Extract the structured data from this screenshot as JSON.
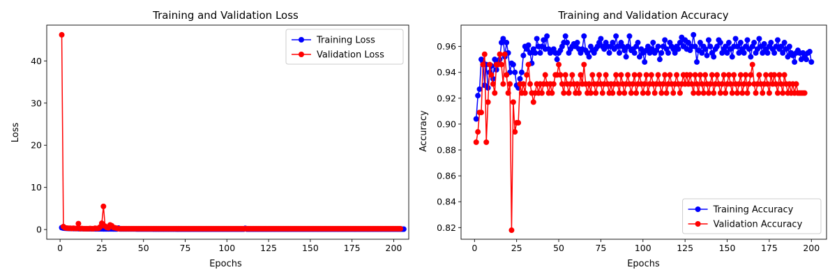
{
  "chart_data": [
    {
      "type": "line",
      "title": "Training and Validation Loss",
      "xlabel": "Epochs",
      "ylabel": "Loss",
      "xlim": [
        -8,
        209
      ],
      "ylim": [
        -2.3,
        48.5
      ],
      "xticks": [
        0,
        25,
        50,
        75,
        100,
        125,
        150,
        175,
        200
      ],
      "yticks": [
        0,
        10,
        20,
        30,
        40
      ],
      "grid": false,
      "legend_position": "top-right",
      "x": {
        "start": 1,
        "end": 200
      },
      "series": [
        {
          "name": "Training Loss",
          "color": "#0000ff",
          "values": [
            0.45,
            0.35,
            0.3,
            0.28,
            0.26,
            0.25,
            0.24,
            0.23,
            0.22,
            0.22,
            0.21,
            0.2,
            0.2,
            0.19,
            0.19,
            0.18,
            0.18,
            0.18,
            0.17,
            0.17,
            0.17,
            0.16,
            0.16,
            0.16,
            0.16,
            0.15,
            0.15,
            0.15,
            0.15,
            0.15,
            0.15,
            0.14,
            0.14,
            0.14,
            0.35,
            0.14,
            0.14,
            0.13,
            0.13,
            0.13,
            0.13,
            0.13,
            0.13,
            0.13,
            0.13,
            0.12,
            0.12,
            0.12,
            0.12,
            0.12,
            0.12,
            0.12,
            0.12,
            0.12,
            0.12,
            0.11,
            0.11,
            0.11,
            0.11,
            0.11,
            0.11,
            0.11,
            0.11,
            0.11,
            0.11,
            0.11,
            0.11,
            0.11,
            0.11,
            0.1,
            0.1,
            0.1,
            0.1,
            0.1,
            0.1,
            0.1,
            0.1,
            0.1,
            0.1,
            0.1,
            0.1,
            0.1,
            0.1,
            0.1,
            0.1,
            0.1,
            0.1,
            0.1,
            0.1,
            0.1,
            0.1,
            0.1,
            0.1,
            0.1,
            0.1,
            0.1,
            0.1,
            0.1,
            0.1,
            0.1,
            0.1,
            0.1,
            0.1,
            0.1,
            0.1,
            0.1,
            0.1,
            0.1,
            0.1,
            0.1,
            0.28,
            0.1,
            0.1,
            0.1,
            0.1,
            0.1,
            0.1,
            0.1,
            0.1,
            0.1,
            0.1,
            0.1,
            0.1,
            0.1,
            0.1,
            0.1,
            0.1,
            0.1,
            0.1,
            0.1,
            0.1,
            0.1,
            0.1,
            0.1,
            0.1,
            0.1,
            0.1,
            0.1,
            0.1,
            0.1,
            0.1,
            0.1,
            0.1,
            0.1,
            0.1,
            0.1,
            0.1,
            0.1,
            0.1,
            0.1,
            0.1,
            0.1,
            0.1,
            0.1,
            0.1,
            0.1,
            0.1,
            0.1,
            0.1,
            0.1,
            0.1,
            0.1,
            0.1,
            0.1,
            0.1,
            0.1,
            0.1,
            0.1,
            0.1,
            0.1,
            0.1,
            0.1,
            0.1,
            0.1,
            0.1,
            0.1,
            0.1,
            0.1,
            0.1,
            0.1,
            0.1,
            0.1,
            0.1,
            0.1,
            0.1,
            0.1,
            0.1,
            0.1,
            0.1,
            0.1,
            0.1,
            0.1,
            0.1,
            0.1,
            0.1,
            0.1,
            0.1,
            0.1,
            0.1,
            0.1,
            0.1,
            0.1,
            0.1,
            0.1,
            0.1,
            0.1
          ]
        },
        {
          "name": "Validation Loss",
          "color": "#ff0000",
          "values": [
            46.2,
            0.7,
            0.4,
            0.35,
            0.3,
            0.3,
            0.25,
            0.3,
            0.25,
            0.25,
            1.4,
            0.2,
            0.25,
            0.2,
            0.2,
            0.2,
            0.2,
            0.25,
            0.2,
            0.2,
            0.3,
            0.25,
            0.3,
            0.6,
            1.5,
            5.5,
            0.8,
            0.5,
            0.4,
            1.1,
            0.9,
            0.5,
            0.4,
            0.3,
            0.2,
            0.2,
            0.2,
            0.2,
            0.2,
            0.2,
            0.2,
            0.2,
            0.2,
            0.2,
            0.2,
            0.2,
            0.2,
            0.2,
            0.2,
            0.2,
            0.2,
            0.2,
            0.2,
            0.2,
            0.2,
            0.2,
            0.2,
            0.2,
            0.2,
            0.2,
            0.2,
            0.2,
            0.2,
            0.2,
            0.2,
            0.2,
            0.2,
            0.2,
            0.2,
            0.2,
            0.2,
            0.2,
            0.2,
            0.2,
            0.2,
            0.2,
            0.2,
            0.2,
            0.2,
            0.2,
            0.2,
            0.2,
            0.2,
            0.2,
            0.2,
            0.2,
            0.2,
            0.2,
            0.2,
            0.2,
            0.2,
            0.2,
            0.2,
            0.2,
            0.2,
            0.2,
            0.2,
            0.2,
            0.2,
            0.2,
            0.2,
            0.2,
            0.2,
            0.2,
            0.2,
            0.2,
            0.2,
            0.2,
            0.2,
            0.2,
            0.2,
            0.2,
            0.2,
            0.2,
            0.2,
            0.2,
            0.2,
            0.2,
            0.2,
            0.2,
            0.2,
            0.2,
            0.2,
            0.2,
            0.2,
            0.2,
            0.2,
            0.2,
            0.2,
            0.2,
            0.2,
            0.2,
            0.2,
            0.2,
            0.2,
            0.2,
            0.2,
            0.2,
            0.2,
            0.2,
            0.2,
            0.2,
            0.2,
            0.2,
            0.2,
            0.2,
            0.2,
            0.2,
            0.2,
            0.2,
            0.2,
            0.2,
            0.2,
            0.2,
            0.2,
            0.2,
            0.2,
            0.2,
            0.2,
            0.2,
            0.2,
            0.2,
            0.2,
            0.2,
            0.2,
            0.2,
            0.2,
            0.2,
            0.2,
            0.2,
            0.2,
            0.2,
            0.2,
            0.2,
            0.2,
            0.2,
            0.2,
            0.2,
            0.2,
            0.2,
            0.2,
            0.2,
            0.2,
            0.2,
            0.2,
            0.2,
            0.2,
            0.2,
            0.2,
            0.2,
            0.2,
            0.2,
            0.2,
            0.2,
            0.2,
            0.2,
            0.2,
            0.2,
            0.2,
            0.2,
            0.2,
            0.2,
            0.2,
            0.2
          ]
        }
      ]
    },
    {
      "type": "line",
      "title": "Training and Validation Accuracy",
      "xlabel": "Epochs",
      "ylabel": "Accuracy",
      "xlim": [
        -8,
        209
      ],
      "ylim": [
        0.811,
        0.9765
      ],
      "xticks": [
        0,
        25,
        50,
        75,
        100,
        125,
        150,
        175,
        200
      ],
      "yticks": [
        0.82,
        0.84,
        0.86,
        0.88,
        0.9,
        0.92,
        0.94,
        0.96
      ],
      "ytick_labels": [
        "0.82",
        "0.84",
        "0.86",
        "0.88",
        "0.90",
        "0.92",
        "0.94",
        "0.96"
      ],
      "grid": false,
      "legend_position": "bottom-right",
      "x": {
        "start": 1,
        "end": 200
      },
      "series": [
        {
          "name": "Training Accuracy",
          "color": "#0000ff",
          "values": [
            0.904,
            0.922,
            0.927,
            0.95,
            0.948,
            0.93,
            0.946,
            0.928,
            0.94,
            0.945,
            0.935,
            0.95,
            0.942,
            0.948,
            0.95,
            0.963,
            0.966,
            0.952,
            0.963,
            0.955,
            0.94,
            0.947,
            0.946,
            0.94,
            0.93,
            0.928,
            0.935,
            0.94,
            0.953,
            0.96,
            0.958,
            0.961,
            0.955,
            0.947,
            0.958,
            0.955,
            0.966,
            0.96,
            0.955,
            0.96,
            0.965,
            0.958,
            0.968,
            0.958,
            0.955,
            0.957,
            0.958,
            0.955,
            0.95,
            0.955,
            0.957,
            0.96,
            0.963,
            0.968,
            0.963,
            0.955,
            0.958,
            0.96,
            0.962,
            0.96,
            0.963,
            0.958,
            0.955,
            0.958,
            0.968,
            0.957,
            0.955,
            0.952,
            0.96,
            0.957,
            0.955,
            0.958,
            0.96,
            0.963,
            0.966,
            0.96,
            0.958,
            0.963,
            0.96,
            0.955,
            0.96,
            0.963,
            0.958,
            0.968,
            0.96,
            0.955,
            0.963,
            0.96,
            0.957,
            0.952,
            0.96,
            0.968,
            0.957,
            0.958,
            0.955,
            0.96,
            0.963,
            0.952,
            0.958,
            0.955,
            0.948,
            0.957,
            0.96,
            0.955,
            0.958,
            0.963,
            0.955,
            0.957,
            0.96,
            0.95,
            0.955,
            0.96,
            0.965,
            0.958,
            0.955,
            0.963,
            0.96,
            0.958,
            0.955,
            0.96,
            0.958,
            0.963,
            0.967,
            0.96,
            0.965,
            0.958,
            0.963,
            0.957,
            0.96,
            0.969,
            0.96,
            0.948,
            0.957,
            0.963,
            0.955,
            0.96,
            0.958,
            0.953,
            0.965,
            0.96,
            0.955,
            0.952,
            0.958,
            0.96,
            0.965,
            0.963,
            0.955,
            0.958,
            0.96,
            0.955,
            0.963,
            0.958,
            0.952,
            0.96,
            0.966,
            0.96,
            0.955,
            0.963,
            0.958,
            0.955,
            0.96,
            0.965,
            0.958,
            0.952,
            0.96,
            0.963,
            0.955,
            0.958,
            0.966,
            0.96,
            0.955,
            0.962,
            0.958,
            0.955,
            0.96,
            0.963,
            0.958,
            0.955,
            0.96,
            0.965,
            0.958,
            0.96,
            0.955,
            0.963,
            0.958,
            0.952,
            0.96,
            0.955,
            0.953,
            0.948,
            0.955,
            0.957,
            0.955,
            0.95,
            0.955,
            0.952,
            0.95,
            0.955,
            0.956,
            0.948
          ]
        },
        {
          "name": "Validation Accuracy",
          "color": "#ff0000",
          "values": [
            0.886,
            0.894,
            0.909,
            0.909,
            0.946,
            0.954,
            0.886,
            0.917,
            0.946,
            0.938,
            0.931,
            0.924,
            0.946,
            0.946,
            0.954,
            0.946,
            0.931,
            0.954,
            0.938,
            0.924,
            0.931,
            0.818,
            0.917,
            0.894,
            0.901,
            0.901,
            0.931,
            0.924,
            0.931,
            0.924,
            0.938,
            0.946,
            0.931,
            0.924,
            0.917,
            0.924,
            0.931,
            0.924,
            0.931,
            0.924,
            0.931,
            0.938,
            0.931,
            0.924,
            0.931,
            0.924,
            0.931,
            0.938,
            0.938,
            0.946,
            0.938,
            0.931,
            0.924,
            0.938,
            0.931,
            0.924,
            0.931,
            0.938,
            0.931,
            0.924,
            0.931,
            0.924,
            0.938,
            0.931,
            0.946,
            0.931,
            0.924,
            0.931,
            0.924,
            0.938,
            0.931,
            0.924,
            0.931,
            0.938,
            0.931,
            0.924,
            0.931,
            0.938,
            0.931,
            0.924,
            0.931,
            0.924,
            0.931,
            0.938,
            0.931,
            0.924,
            0.938,
            0.931,
            0.924,
            0.931,
            0.938,
            0.931,
            0.924,
            0.931,
            0.938,
            0.924,
            0.931,
            0.938,
            0.931,
            0.924,
            0.931,
            0.938,
            0.924,
            0.931,
            0.938,
            0.931,
            0.924,
            0.931,
            0.938,
            0.931,
            0.924,
            0.931,
            0.938,
            0.924,
            0.931,
            0.938,
            0.931,
            0.924,
            0.931,
            0.938,
            0.931,
            0.924,
            0.931,
            0.938,
            0.931,
            0.938,
            0.931,
            0.938,
            0.931,
            0.924,
            0.938,
            0.931,
            0.924,
            0.938,
            0.931,
            0.924,
            0.938,
            0.931,
            0.924,
            0.931,
            0.938,
            0.924,
            0.931,
            0.938,
            0.931,
            0.924,
            0.931,
            0.938,
            0.924,
            0.931,
            0.938,
            0.931,
            0.924,
            0.938,
            0.931,
            0.924,
            0.931,
            0.938,
            0.924,
            0.931,
            0.938,
            0.924,
            0.931,
            0.938,
            0.946,
            0.931,
            0.924,
            0.931,
            0.938,
            0.931,
            0.924,
            0.931,
            0.938,
            0.931,
            0.924,
            0.938,
            0.931,
            0.938,
            0.931,
            0.924,
            0.938,
            0.931,
            0.924,
            0.938,
            0.931,
            0.924,
            0.931,
            0.924,
            0.931,
            0.924,
            0.931,
            0.924,
            0.924,
            0.924,
            0.924,
            0.924
          ]
        }
      ]
    }
  ]
}
